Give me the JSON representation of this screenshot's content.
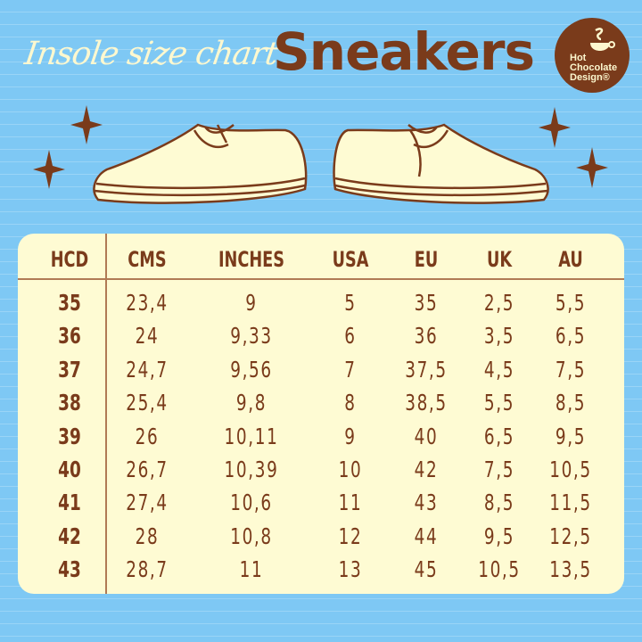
{
  "header": {
    "subtitle": "Insole size chart",
    "title": "Sneakers"
  },
  "logo": {
    "text_lines": [
      "Hot",
      "Chocolate",
      "Design®"
    ]
  },
  "colors": {
    "background": "#7ec8f4",
    "brown": "#7a3b1b",
    "cream": "#fefbd3"
  },
  "table": {
    "columns": [
      "HCD",
      "CMS",
      "INCHES",
      "USA",
      "EU",
      "UK",
      "AU"
    ],
    "rows": [
      [
        "35",
        "23,4",
        "9",
        "5",
        "35",
        "2,5",
        "5,5"
      ],
      [
        "36",
        "24",
        "9,33",
        "6",
        "36",
        "3,5",
        "6,5"
      ],
      [
        "37",
        "24,7",
        "9,56",
        "7",
        "37,5",
        "4,5",
        "7,5"
      ],
      [
        "38",
        "25,4",
        "9,8",
        "8",
        "38,5",
        "5,5",
        "8,5"
      ],
      [
        "39",
        "26",
        "10,11",
        "9",
        "40",
        "6,5",
        "9,5"
      ],
      [
        "40",
        "26,7",
        "10,39",
        "10",
        "42",
        "7,5",
        "10,5"
      ],
      [
        "41",
        "27,4",
        "10,6",
        "11",
        "43",
        "8,5",
        "11,5"
      ],
      [
        "42",
        "28",
        "10,8",
        "12",
        "44",
        "9,5",
        "12,5"
      ],
      [
        "43",
        "28,7",
        "11",
        "13",
        "45",
        "10,5",
        "13,5"
      ]
    ]
  }
}
